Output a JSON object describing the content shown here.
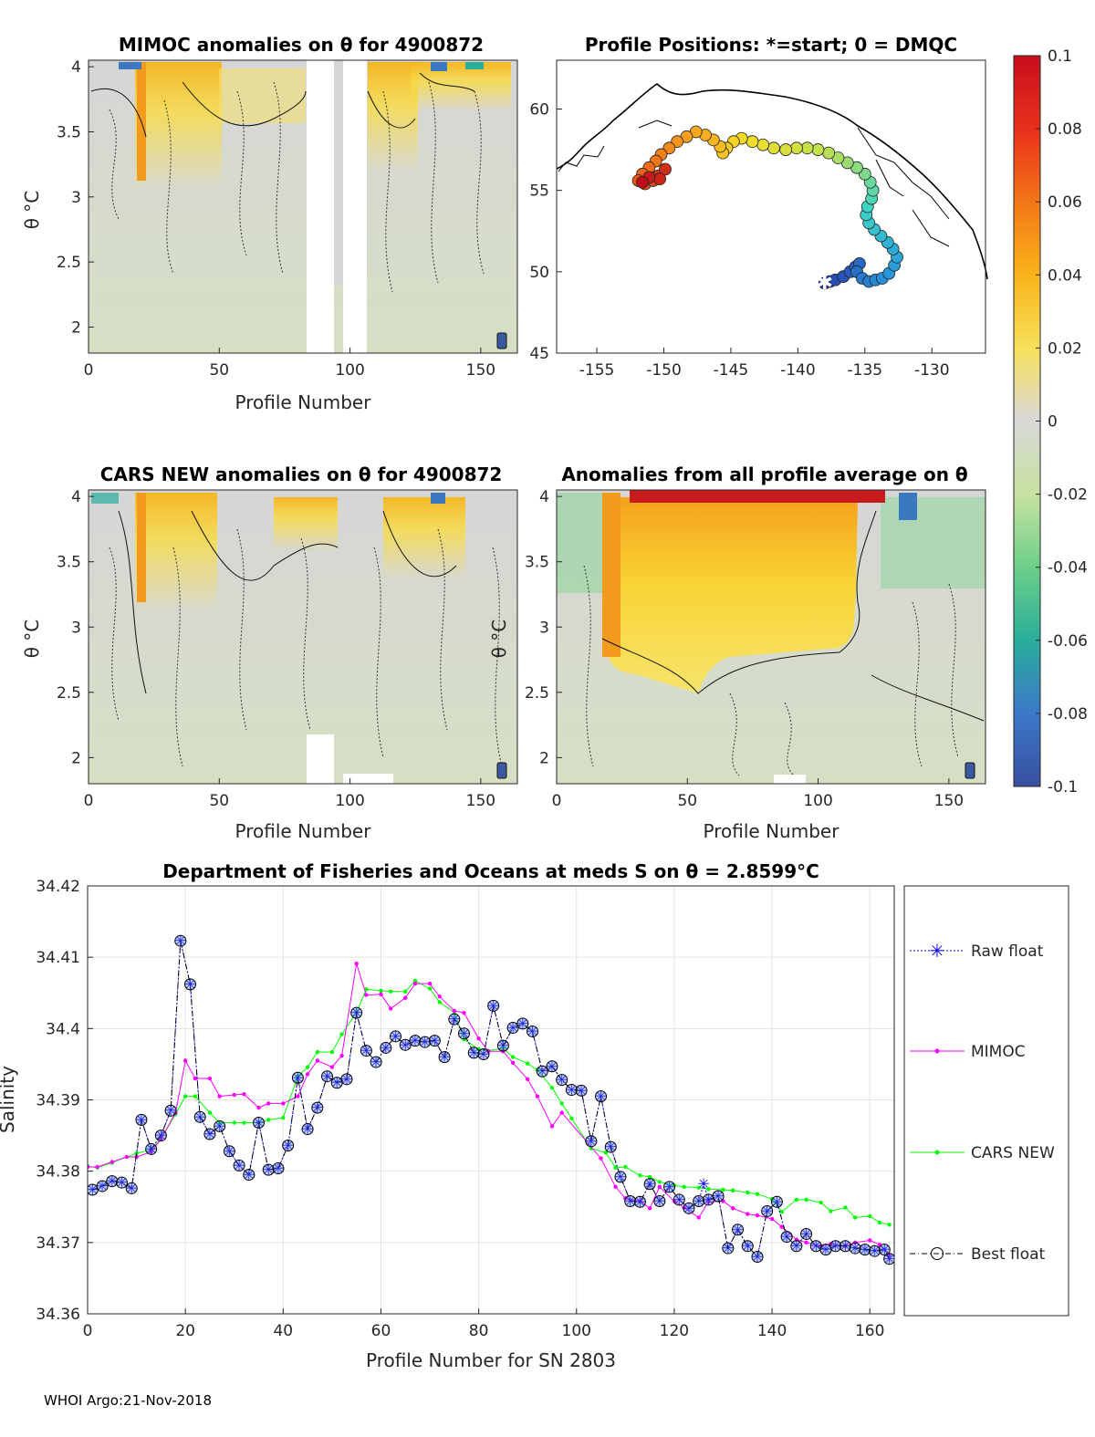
{
  "footer": "WHOI Argo:21-Nov-2018",
  "colors": {
    "mimoc": "#ff00ff",
    "cars": "#00ff00",
    "raw": "#0000ff",
    "best": "#000000",
    "marker_fill": "#4a6cd4"
  },
  "chart_data": [
    {
      "id": "mimoc_anom",
      "type": "heatmap",
      "title": "MIMOC anomalies on θ  for 4900872",
      "xlabel": "Profile Number",
      "ylabel": "θ °C",
      "xlim": [
        0,
        164
      ],
      "ylim": [
        1.8,
        4.05
      ],
      "xticks": [
        "0",
        "50",
        "100",
        "150"
      ],
      "yticks": [
        "2",
        "2.5",
        "3",
        "3.5",
        "4"
      ],
      "data_gaps": [
        [
          84,
          94
        ],
        [
          96,
          107
        ]
      ]
    },
    {
      "id": "positions",
      "type": "scatter",
      "title": "Profile Positions: *=start; 0 = DMQC",
      "xlim": [
        -158,
        -126
      ],
      "ylim": [
        45,
        63
      ],
      "xticks": [
        "-155",
        "-150",
        "-145",
        "-140",
        "-135",
        "-130"
      ],
      "yticks": [
        "45",
        "50",
        "55",
        "60"
      ],
      "start": [
        -138,
        49.3
      ],
      "track": [
        [
          -138,
          49.3
        ],
        [
          -137.6,
          49.4
        ],
        [
          -137.2,
          49.5
        ],
        [
          -136.6,
          49.7
        ],
        [
          -136.1,
          50.0
        ],
        [
          -135.7,
          50.3
        ],
        [
          -135.4,
          50.5
        ],
        [
          -135.6,
          50.0
        ],
        [
          -135.2,
          49.6
        ],
        [
          -134.7,
          49.4
        ],
        [
          -134.2,
          49.5
        ],
        [
          -133.7,
          49.6
        ],
        [
          -133.2,
          49.9
        ],
        [
          -132.8,
          50.4
        ],
        [
          -132.6,
          50.9
        ],
        [
          -132.9,
          51.4
        ],
        [
          -133.3,
          51.8
        ],
        [
          -133.8,
          52.2
        ],
        [
          -134.3,
          52.6
        ],
        [
          -134.7,
          53.0
        ],
        [
          -134.9,
          53.5
        ],
        [
          -134.8,
          54.0
        ],
        [
          -134.5,
          54.5
        ],
        [
          -134.4,
          55.0
        ],
        [
          -134.6,
          55.5
        ],
        [
          -135.0,
          56.0
        ],
        [
          -135.6,
          56.4
        ],
        [
          -136.3,
          56.7
        ],
        [
          -137.0,
          57.0
        ],
        [
          -137.7,
          57.3
        ],
        [
          -138.5,
          57.5
        ],
        [
          -139.3,
          57.6
        ],
        [
          -140.1,
          57.6
        ],
        [
          -140.9,
          57.5
        ],
        [
          -141.8,
          57.6
        ],
        [
          -142.6,
          57.8
        ],
        [
          -143.4,
          58.0
        ],
        [
          -144.2,
          58.2
        ],
        [
          -144.8,
          58.0
        ],
        [
          -145.3,
          57.6
        ],
        [
          -145.6,
          57.3
        ],
        [
          -145.8,
          57.7
        ],
        [
          -146.3,
          58.1
        ],
        [
          -146.9,
          58.4
        ],
        [
          -147.6,
          58.6
        ],
        [
          -148.3,
          58.3
        ],
        [
          -149.0,
          58.0
        ],
        [
          -149.6,
          57.6
        ],
        [
          -150.2,
          57.2
        ],
        [
          -150.6,
          56.8
        ],
        [
          -151.1,
          56.4
        ],
        [
          -151.6,
          56.0
        ],
        [
          -151.9,
          55.6
        ],
        [
          -151.4,
          55.4
        ],
        [
          -150.8,
          55.6
        ],
        [
          -150.4,
          55.9
        ],
        [
          -149.9,
          56.3
        ],
        [
          -150.3,
          55.7
        ],
        [
          -151.1,
          55.8
        ],
        [
          -151.6,
          55.5
        ]
      ]
    },
    {
      "id": "colorbar",
      "type": "colorbar",
      "min": -0.1,
      "max": 0.1,
      "ticks": [
        "0.1",
        "0.08",
        "0.06",
        "0.04",
        "0.02",
        "0",
        "-0.02",
        "-0.04",
        "-0.06",
        "-0.08",
        "-0.1"
      ]
    },
    {
      "id": "cars_anom",
      "type": "heatmap",
      "title": "CARS NEW anomalies on θ for 4900872",
      "xlabel": "Profile Number",
      "ylabel": "θ °C",
      "xlim": [
        0,
        164
      ],
      "ylim": [
        1.8,
        4.05
      ],
      "xticks": [
        "0",
        "50",
        "100",
        "150"
      ],
      "yticks": [
        "2",
        "2.5",
        "3",
        "3.5",
        "4"
      ]
    },
    {
      "id": "avg_anom",
      "type": "heatmap",
      "title": "Anomalies from all profile average on θ",
      "xlabel": "Profile Number",
      "ylabel": "θ °C",
      "xlim": [
        0,
        164
      ],
      "ylim": [
        1.8,
        4.05
      ],
      "xticks": [
        "0",
        "50",
        "100",
        "150"
      ],
      "yticks": [
        "2",
        "2.5",
        "3",
        "3.5",
        "4"
      ]
    },
    {
      "id": "salinity",
      "type": "line",
      "title": "Department of Fisheries and Oceans at meds S on θ = 2.8599°C",
      "xlabel": "Profile Number for SN 2803",
      "ylabel": "Salinity",
      "xlim": [
        0,
        165
      ],
      "ylim": [
        34.36,
        34.42
      ],
      "xticks": [
        "0",
        "20",
        "40",
        "60",
        "80",
        "100",
        "120",
        "140",
        "160"
      ],
      "yticks": [
        "34.36",
        "34.37",
        "34.38",
        "34.39",
        "34.4",
        "34.41",
        "34.42"
      ],
      "legend": [
        "Raw float",
        "MIMOC",
        "CARS NEW",
        "Best float"
      ],
      "series": [
        {
          "name": "MIMOC",
          "x": [
            0,
            2,
            5,
            8,
            10,
            13,
            15,
            18,
            20,
            22,
            25,
            27,
            30,
            32,
            35,
            37,
            40,
            43,
            45,
            47,
            50,
            52,
            55,
            57,
            60,
            62,
            65,
            67,
            70,
            72,
            75,
            77,
            80,
            82,
            85,
            87,
            90,
            92,
            95,
            97,
            105,
            108,
            110,
            113,
            115,
            117,
            120,
            122,
            125,
            127,
            130,
            132,
            135,
            137,
            140,
            142,
            145,
            147,
            150,
            152,
            155,
            157,
            160,
            162,
            164
          ],
          "y": [
            34.3806,
            34.3806,
            34.3813,
            34.382,
            34.382,
            34.3827,
            34.3845,
            34.3882,
            34.3955,
            34.393,
            34.393,
            34.3905,
            34.3907,
            34.3908,
            34.3889,
            34.3895,
            34.3895,
            34.3905,
            34.3936,
            34.3955,
            34.3946,
            34.3962,
            34.4091,
            34.4047,
            34.4048,
            34.4028,
            34.4043,
            34.4063,
            34.4063,
            34.4045,
            34.4025,
            34.4022,
            34.3986,
            34.3968,
            34.3968,
            34.3952,
            34.3929,
            34.3905,
            34.3863,
            34.3882,
            34.3818,
            34.3778,
            34.3762,
            34.3758,
            34.3748,
            34.3778,
            34.3758,
            34.3749,
            34.3735,
            34.3757,
            34.3758,
            34.3748,
            34.374,
            34.3738,
            34.3733,
            34.3722,
            34.3704,
            34.37,
            34.3695,
            34.3698,
            34.3695,
            34.37,
            34.3703,
            34.3697,
            34.3682
          ]
        },
        {
          "name": "CARS NEW",
          "x": [
            0,
            2,
            5,
            8,
            10,
            13,
            15,
            18,
            20,
            22,
            25,
            27,
            30,
            32,
            35,
            37,
            40,
            43,
            45,
            47,
            50,
            52,
            55,
            57,
            60,
            62,
            65,
            67,
            70,
            72,
            75,
            77,
            80,
            82,
            85,
            87,
            90,
            92,
            95,
            97,
            99,
            103,
            106,
            108,
            110,
            113,
            115,
            117,
            120,
            122,
            125,
            127,
            130,
            132,
            135,
            137,
            140,
            142,
            145,
            147,
            150,
            152,
            155,
            157,
            160,
            162,
            164
          ],
          "y": [
            34.3807,
            34.3805,
            34.3812,
            34.382,
            34.3825,
            34.383,
            34.3845,
            34.388,
            34.3905,
            34.3905,
            34.3882,
            34.3868,
            34.3868,
            34.3868,
            34.3868,
            34.3872,
            34.3875,
            34.3933,
            34.3946,
            34.3967,
            34.3967,
            34.3992,
            34.4023,
            34.4055,
            34.4053,
            34.4052,
            34.4052,
            34.4067,
            34.4056,
            34.4037,
            34.4023,
            34.3985,
            34.3971,
            34.3969,
            34.3972,
            34.396,
            34.3951,
            34.3942,
            34.3917,
            34.3895,
            34.3874,
            34.3832,
            34.3826,
            34.3805,
            34.3806,
            34.3794,
            34.3792,
            34.3785,
            34.378,
            34.3778,
            34.3777,
            34.3775,
            34.3774,
            34.3773,
            34.377,
            34.3768,
            34.3761,
            34.3743,
            34.376,
            34.376,
            34.3756,
            34.3744,
            34.3749,
            34.3735,
            34.3737,
            34.3728,
            34.3725
          ]
        },
        {
          "name": "Best float",
          "x": [
            1,
            3,
            5,
            7,
            9,
            11,
            13,
            15,
            17,
            19,
            21,
            23,
            25,
            27,
            29,
            31,
            33,
            35,
            37,
            39,
            41,
            43,
            45,
            47,
            49,
            51,
            53,
            55,
            57,
            59,
            61,
            63,
            65,
            67,
            69,
            71,
            73,
            75,
            77,
            79,
            81,
            83,
            85,
            87,
            89,
            91,
            93,
            95,
            97,
            99,
            101,
            103,
            105,
            107,
            109,
            111,
            113,
            115,
            117,
            119,
            121,
            123,
            125,
            127,
            129,
            131,
            133,
            135,
            137,
            139,
            141,
            143,
            145,
            147,
            149,
            151,
            153,
            155,
            157,
            159,
            161,
            163,
            164
          ],
          "y": [
            34.3774,
            34.3779,
            34.3786,
            34.3784,
            34.3776,
            34.3872,
            34.3831,
            34.385,
            34.3885,
            34.4123,
            34.4062,
            34.3876,
            34.3852,
            34.3863,
            34.3828,
            34.3808,
            34.3795,
            34.3868,
            34.3802,
            34.3804,
            34.3836,
            34.3931,
            34.3859,
            34.3889,
            34.3933,
            34.3924,
            34.3929,
            34.4022,
            34.3969,
            34.3953,
            34.3973,
            34.3989,
            34.3977,
            34.3983,
            34.3981,
            34.3983,
            34.396,
            34.4013,
            34.3993,
            34.3966,
            34.3964,
            34.4032,
            34.3976,
            34.4001,
            34.4007,
            34.3996,
            34.394,
            34.3947,
            34.3928,
            34.3914,
            34.3913,
            34.3842,
            34.3905,
            34.3834,
            34.3792,
            34.3758,
            34.3757,
            34.3782,
            34.3758,
            34.3778,
            34.376,
            34.3748,
            34.3758,
            34.376,
            34.3765,
            34.3692,
            34.3718,
            34.3695,
            34.368,
            34.3744,
            34.3757,
            34.3708,
            34.3695,
            34.3712,
            34.3695,
            34.369,
            34.3695,
            34.3695,
            34.3692,
            34.369,
            34.3688,
            34.369,
            34.3677
          ]
        },
        {
          "name": "Raw float",
          "x": [
            1,
            3,
            5,
            7,
            9,
            11,
            13,
            15,
            17,
            19,
            21,
            23,
            25,
            27,
            29,
            31,
            33,
            35,
            37,
            39,
            41,
            43,
            45,
            47,
            49,
            51,
            53,
            55,
            57,
            59,
            61,
            63,
            65,
            67,
            69,
            71,
            73,
            75,
            77,
            79,
            81,
            83,
            85,
            87,
            89,
            91,
            93,
            95,
            97,
            99,
            101,
            103,
            105,
            107,
            109,
            111,
            113,
            115,
            117,
            119,
            121,
            123,
            125,
            126,
            127,
            129,
            131,
            133,
            135,
            137,
            139,
            141,
            143,
            145,
            147,
            149,
            151,
            153,
            155,
            157,
            159,
            161,
            163,
            164
          ],
          "y": [
            34.3774,
            34.3779,
            34.3786,
            34.3784,
            34.3776,
            34.3872,
            34.3831,
            34.385,
            34.3885,
            34.4123,
            34.4062,
            34.3876,
            34.3852,
            34.3863,
            34.3828,
            34.3808,
            34.3795,
            34.3868,
            34.3802,
            34.3804,
            34.3836,
            34.3931,
            34.3859,
            34.3889,
            34.3933,
            34.3924,
            34.3929,
            34.4022,
            34.3969,
            34.3953,
            34.3973,
            34.3989,
            34.3977,
            34.3983,
            34.3981,
            34.3983,
            34.396,
            34.4013,
            34.3993,
            34.3966,
            34.3964,
            34.4032,
            34.3976,
            34.4001,
            34.4007,
            34.3996,
            34.394,
            34.3947,
            34.3928,
            34.3914,
            34.3913,
            34.3842,
            34.3905,
            34.3834,
            34.3792,
            34.3758,
            34.3757,
            34.3782,
            34.3758,
            34.3778,
            34.376,
            34.3748,
            34.3758,
            34.3782,
            34.376,
            34.3765,
            34.3692,
            34.3718,
            34.3695,
            34.368,
            34.3744,
            34.3757,
            34.3708,
            34.3695,
            34.3712,
            34.3695,
            34.369,
            34.3695,
            34.3695,
            34.3692,
            34.369,
            34.3688,
            34.369,
            34.3677
          ]
        }
      ]
    }
  ]
}
